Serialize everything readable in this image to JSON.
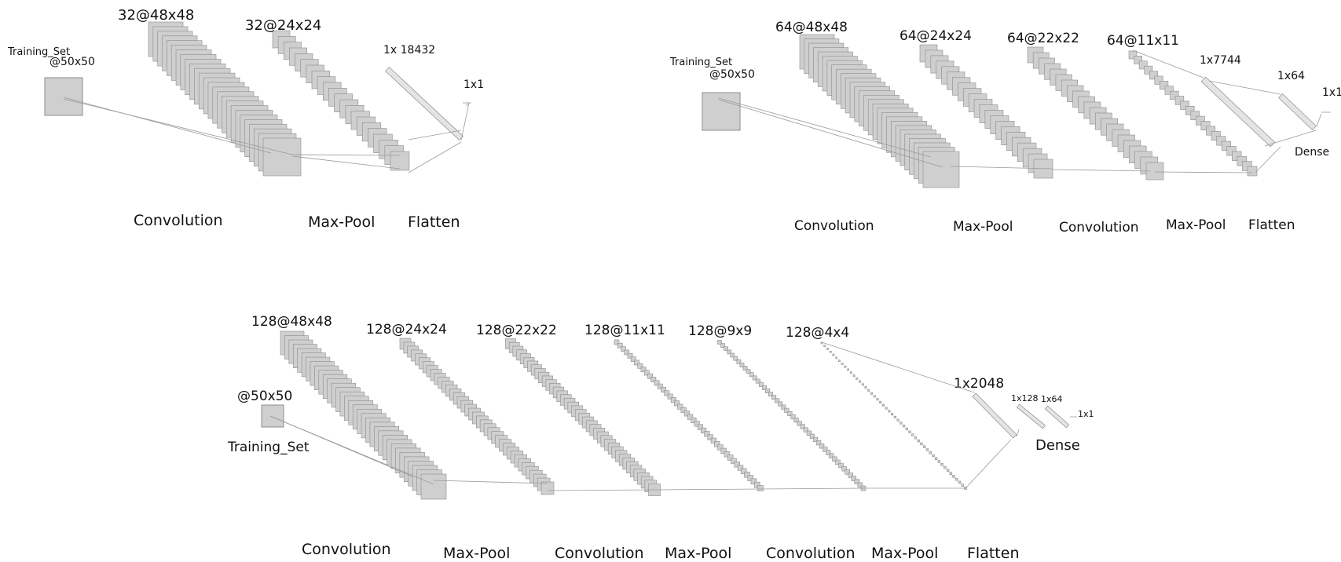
{
  "colors": {
    "map_fill": "#cfcfcf",
    "map_stroke": "#8c8c8c",
    "line": "#9a9a9a",
    "text": "#111111",
    "background": "#ffffff"
  },
  "diagrams": [
    {
      "input": {
        "name": "Training_Set",
        "size": "@50x50"
      },
      "layers": [
        {
          "kind": "stack",
          "label": "32@48x48"
        },
        {
          "kind": "stack",
          "label": "32@24x24"
        },
        {
          "kind": "vector",
          "label": "1x 18432"
        },
        {
          "kind": "vector",
          "label": "1x1"
        }
      ],
      "op_labels": [
        "Convolution",
        "Max-Pool",
        "Flatten"
      ]
    },
    {
      "input": {
        "name": "Training_Set",
        "size": "@50x50"
      },
      "layers": [
        {
          "kind": "stack",
          "label": "64@48x48"
        },
        {
          "kind": "stack",
          "label": "64@24x24"
        },
        {
          "kind": "stack",
          "label": "64@22x22"
        },
        {
          "kind": "stack",
          "label": "64@11x11"
        },
        {
          "kind": "vector",
          "label": "1x7744"
        },
        {
          "kind": "vector",
          "label": "1x64"
        },
        {
          "kind": "vector",
          "label": "1x1"
        }
      ],
      "op_labels": [
        "Convolution",
        "Max-Pool",
        "Convolution",
        "Max-Pool",
        "Flatten",
        "Dense"
      ]
    },
    {
      "input": {
        "name": "Training_Set",
        "size": "@50x50"
      },
      "layers": [
        {
          "kind": "stack",
          "label": "128@48x48"
        },
        {
          "kind": "stack",
          "label": "128@24x24"
        },
        {
          "kind": "stack",
          "label": "128@22x22"
        },
        {
          "kind": "stack",
          "label": "128@11x11"
        },
        {
          "kind": "stack",
          "label": "128@9x9"
        },
        {
          "kind": "stack",
          "label": "128@4x4"
        },
        {
          "kind": "vector",
          "label": "1x2048"
        },
        {
          "kind": "vector",
          "label": "1x128"
        },
        {
          "kind": "vector",
          "label": "1x64"
        },
        {
          "kind": "vector",
          "label": "1x1"
        }
      ],
      "op_labels": [
        "Convolution",
        "Max-Pool",
        "Convolution",
        "Max-Pool",
        "Convolution",
        "Max-Pool",
        "Flatten",
        "Dense"
      ]
    }
  ]
}
